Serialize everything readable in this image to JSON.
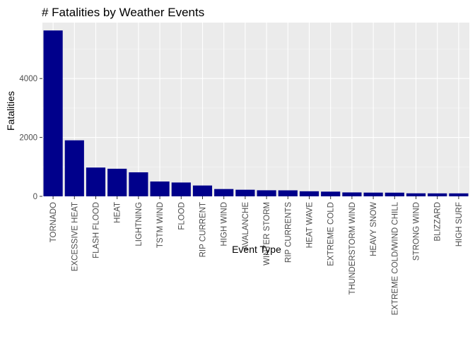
{
  "chart_data": {
    "type": "bar",
    "title": "# Fatalities by Weather Events",
    "xlabel": "Event Type",
    "ylabel": "Fatalities",
    "ylim": [
      0,
      5900
    ],
    "yticks": [
      0,
      2000,
      4000
    ],
    "categories": [
      "TORNADO",
      "EXCESSIVE HEAT",
      "FLASH FLOOD",
      "HEAT",
      "LIGHTNING",
      "TSTM WIND",
      "FLOOD",
      "RIP CURRENT",
      "HIGH WIND",
      "AVALANCHE",
      "WINTER STORM",
      "RIP CURRENTS",
      "HEAT WAVE",
      "EXTREME COLD",
      "THUNDERSTORM WIND",
      "HEAVY SNOW",
      "EXTREME COLD/WIND CHILL",
      "STRONG WIND",
      "BLIZZARD",
      "HIGH SURF"
    ],
    "values": [
      5633,
      1903,
      978,
      937,
      816,
      504,
      470,
      368,
      248,
      224,
      206,
      204,
      172,
      160,
      133,
      127,
      125,
      103,
      101,
      101
    ],
    "colors": {
      "bar": "#00008b",
      "panel": "#ebebeb",
      "grid_major": "#ffffff",
      "grid_minor": "#f5f5f5",
      "tick": "#333333"
    }
  }
}
